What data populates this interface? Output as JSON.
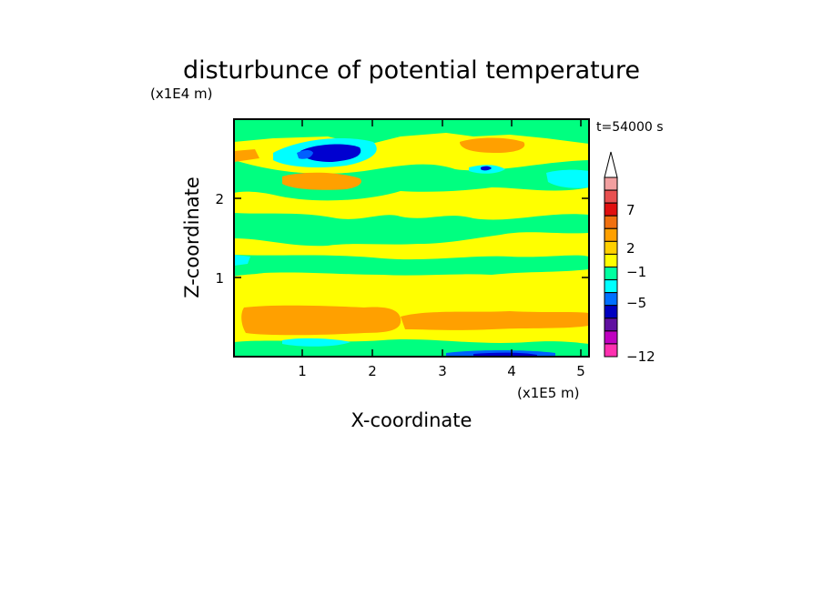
{
  "chart_data": {
    "type": "heatmap",
    "title": "disturbunce of potential temperature",
    "xlabel": "X-coordinate",
    "ylabel": "Z-coordinate",
    "x_unit": "(x1E5 m)",
    "y_unit": "(x1E4 m)",
    "time_label": "t=54000 s",
    "xlim": [
      0,
      5.15
    ],
    "ylim": [
      0,
      2.95
    ],
    "x_ticks": [
      "1",
      "2",
      "3",
      "4",
      "5"
    ],
    "y_ticks": [
      "1",
      "2"
    ],
    "colorbar": {
      "labels": [
        "7",
        "2",
        "−1",
        "−5",
        "−12"
      ],
      "label_levels": [
        7,
        2,
        -1,
        -5,
        -12
      ],
      "colors": [
        "#f2a0a0",
        "#e85050",
        "#e01010",
        "#f07010",
        "#ffa000",
        "#ffd000",
        "#ffff00",
        "#00ffa0",
        "#00ffff",
        "#0070ff",
        "#0000c0",
        "#6010a0",
        "#c000c0",
        "#ff30b0"
      ],
      "extend_top": true
    },
    "palette": {
      "warm2": "#ffa000",
      "warm1": "#ffff00",
      "neutral": "#00ff80",
      "cool1": "#00ffff",
      "cool2": "#0000d0",
      "cool3": "#0060ff"
    },
    "grid": false
  }
}
